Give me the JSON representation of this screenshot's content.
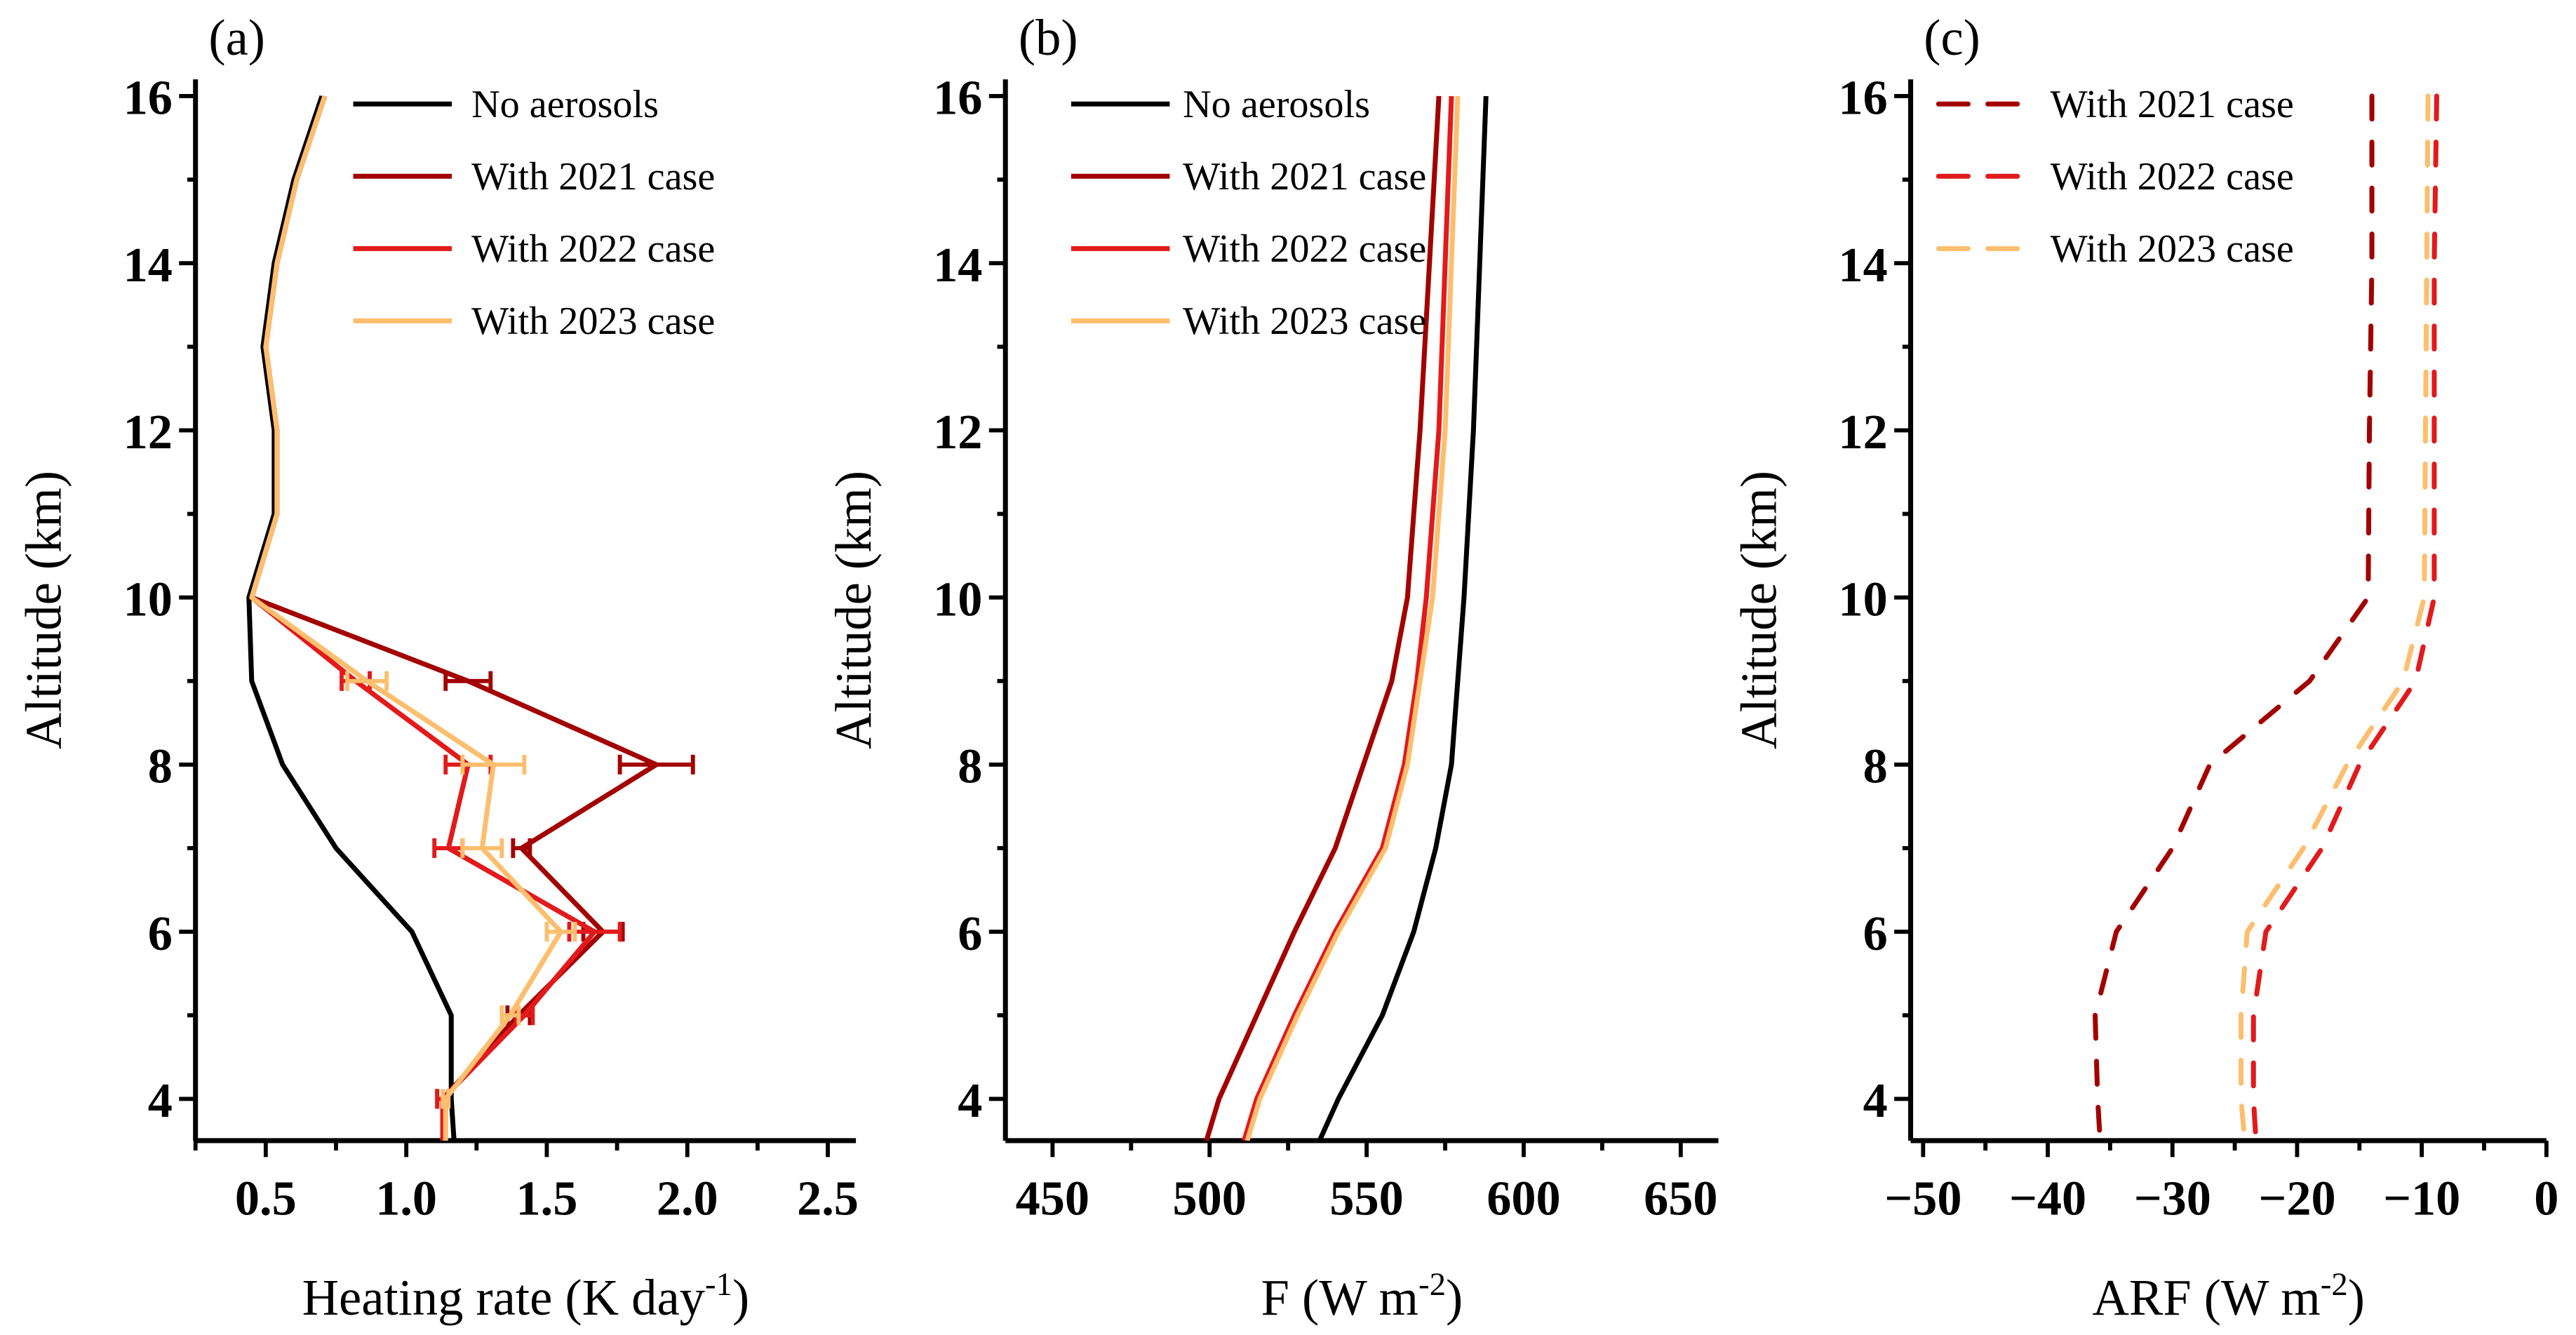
{
  "colors": {
    "no": "#000000",
    "y2021": "#a30000",
    "y2022": "#e31a1c",
    "y2023": "#fdbe6e"
  },
  "chart_data": [
    {
      "type": "line",
      "panel_label": "(a)",
      "xlabel": "Heating rate (K day",
      "xlabel_sup": "-1",
      "xlabel_end": ")",
      "ylabel": "Altitude (km)",
      "xlim": [
        0.25,
        2.6
      ],
      "ylim": [
        3.5,
        16.2
      ],
      "xticks": [
        0.5,
        1.0,
        1.5,
        2.0,
        2.5
      ],
      "xtick_labels": [
        "0.5",
        "1.0",
        "1.5",
        "2.0",
        "2.5"
      ],
      "xminor": 0.25,
      "yticks": [
        4,
        6,
        8,
        10,
        12,
        14,
        16
      ],
      "legend_position": "top-right",
      "series": [
        {
          "name": "No aerosols",
          "color": "no",
          "dash": false,
          "y": [
            16,
            15,
            14,
            13,
            12,
            11,
            10,
            9,
            8,
            7,
            6,
            5,
            4,
            3.5
          ],
          "x": [
            0.7,
            0.6,
            0.53,
            0.49,
            0.53,
            0.53,
            0.44,
            0.45,
            0.56,
            0.75,
            1.02,
            1.16,
            1.16,
            1.17
          ]
        },
        {
          "name": "With 2021 case",
          "color": "y2021",
          "dash": false,
          "y": [
            16,
            15,
            14,
            13,
            12,
            11,
            10,
            9,
            8,
            7,
            6,
            5,
            4,
            3.5
          ],
          "x": [
            0.71,
            0.61,
            0.54,
            0.5,
            0.54,
            0.54,
            0.45,
            1.22,
            1.89,
            1.41,
            1.7,
            1.4,
            1.13,
            1.13
          ],
          "err": [
            0,
            0,
            0,
            0,
            0,
            0,
            0,
            0.08,
            0.13,
            0.03,
            0.07,
            0.04,
            0.02,
            0
          ]
        },
        {
          "name": "With 2022 case",
          "color": "y2022",
          "dash": false,
          "y": [
            16,
            15,
            14,
            13,
            12,
            11,
            10,
            9,
            8,
            7,
            6,
            5,
            4,
            3.5
          ],
          "x": [
            0.71,
            0.61,
            0.54,
            0.5,
            0.54,
            0.54,
            0.45,
            0.82,
            1.22,
            1.15,
            1.67,
            1.42,
            1.13,
            1.13
          ],
          "err": [
            0,
            0,
            0,
            0,
            0,
            0,
            0,
            0.05,
            0.08,
            0.05,
            0.09,
            0.03,
            0.02,
            0
          ]
        },
        {
          "name": "With 2023 case",
          "color": "y2023",
          "dash": false,
          "y": [
            16,
            15,
            14,
            13,
            12,
            11,
            10,
            9,
            8,
            7,
            6,
            5,
            4,
            3.5
          ],
          "x": [
            0.71,
            0.61,
            0.54,
            0.5,
            0.54,
            0.54,
            0.45,
            0.86,
            1.31,
            1.27,
            1.55,
            1.37,
            1.14,
            1.14
          ],
          "err": [
            0,
            0,
            0,
            0,
            0,
            0,
            0,
            0.07,
            0.11,
            0.07,
            0.05,
            0.03,
            0.01,
            0
          ]
        }
      ]
    },
    {
      "type": "line",
      "panel_label": "(b)",
      "xlabel": "F  (W m",
      "xlabel_sup": "-2",
      "xlabel_end": ")",
      "ylabel": "Altitude (km)",
      "xlim": [
        435,
        662
      ],
      "ylim": [
        3.5,
        16.2
      ],
      "xticks": [
        450,
        500,
        550,
        600,
        650
      ],
      "xtick_labels": [
        "450",
        "500",
        "550",
        "600",
        "650"
      ],
      "xminor": 25,
      "yticks": [
        4,
        6,
        8,
        10,
        12,
        14,
        16
      ],
      "legend_position": "top-right",
      "series": [
        {
          "name": "No aerosols",
          "color": "no",
          "dash": false,
          "y": [
            16,
            14,
            12,
            10,
            9,
            8,
            7,
            6,
            5,
            4,
            3.5
          ],
          "x": [
            588,
            586,
            584,
            581,
            579,
            577,
            572,
            565,
            555,
            541,
            535
          ]
        },
        {
          "name": "With 2021 case",
          "color": "y2021",
          "dash": false,
          "y": [
            16,
            14,
            12,
            10,
            9,
            8,
            7,
            6,
            5,
            4,
            3.5
          ],
          "x": [
            573,
            570,
            567,
            563,
            558,
            549,
            540,
            527,
            515,
            503,
            499
          ]
        },
        {
          "name": "With 2022 case",
          "color": "y2022",
          "dash": false,
          "y": [
            16,
            14,
            12,
            10,
            9,
            8,
            7,
            6,
            5,
            4,
            3.5
          ],
          "x": [
            577,
            575,
            573,
            569,
            566,
            562,
            555,
            540,
            527,
            515,
            511
          ]
        },
        {
          "name": "With 2023 case",
          "color": "y2023",
          "dash": false,
          "y": [
            16,
            14,
            12,
            10,
            9,
            8,
            7,
            6,
            5,
            4,
            3.5
          ],
          "x": [
            579,
            577,
            575,
            571,
            567,
            563,
            556,
            541,
            528,
            516,
            512
          ]
        }
      ]
    },
    {
      "type": "line",
      "panel_label": "(c)",
      "xlabel": "ARF  (W m",
      "xlabel_sup": "-2",
      "xlabel_end": ")",
      "ylabel": "Altitude (km)",
      "xlim": [
        -51,
        0
      ],
      "ylim": [
        3.5,
        16.2
      ],
      "xticks": [
        -50,
        -40,
        -30,
        -20,
        -10,
        0
      ],
      "xtick_labels": [
        "−50",
        "−40",
        "−30",
        "−20",
        "−10",
        "0"
      ],
      "xminor": 5,
      "yticks": [
        4,
        6,
        8,
        10,
        12,
        14,
        16
      ],
      "legend_position": "top-left",
      "series": [
        {
          "name": "With 2021 case",
          "color": "y2021",
          "dash": true,
          "y": [
            16,
            14,
            12,
            10,
            9,
            8,
            7,
            6,
            5,
            4,
            3.5
          ],
          "x": [
            -14,
            -14,
            -14.2,
            -14.3,
            -19,
            -27,
            -30,
            -34.5,
            -36.2,
            -36,
            -35.8
          ]
        },
        {
          "name": "With 2022 case",
          "color": "y2022",
          "dash": true,
          "y": [
            16,
            14,
            12,
            10,
            9,
            8,
            7,
            6,
            5,
            4,
            3.5
          ],
          "x": [
            -8.8,
            -9,
            -9,
            -9,
            -10.5,
            -15,
            -18,
            -22.5,
            -23.5,
            -23.5,
            -23.3
          ]
        },
        {
          "name": "With 2023 case",
          "color": "y2023",
          "dash": true,
          "y": [
            16,
            14,
            12,
            10,
            9,
            8,
            7,
            6,
            5,
            4,
            3.5
          ],
          "x": [
            -9.5,
            -9.6,
            -9.7,
            -9.8,
            -11.5,
            -16,
            -19.5,
            -24,
            -24.5,
            -24.5,
            -24.2
          ]
        }
      ]
    }
  ]
}
